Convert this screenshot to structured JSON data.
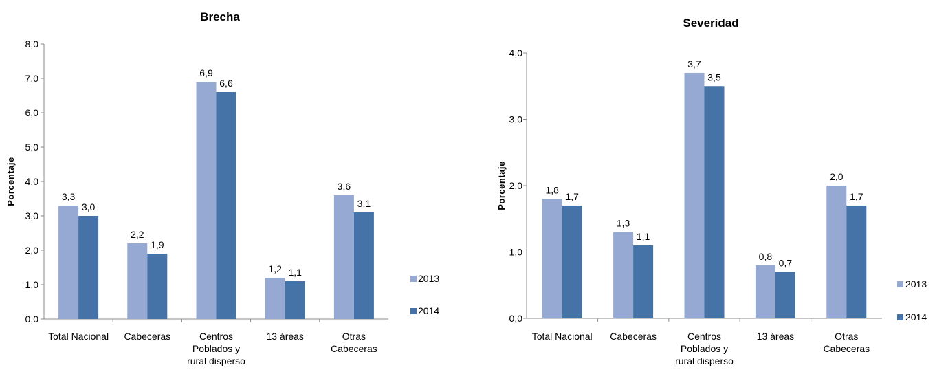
{
  "chart_data": [
    {
      "type": "bar",
      "title": "Brecha",
      "ylabel": "Porcentaje",
      "xlabel": "",
      "ylim": [
        0,
        8
      ],
      "ytick_step": 1,
      "ytick_labels": [
        "0,0",
        "1,0",
        "2,0",
        "3,0",
        "4,0",
        "5,0",
        "6,0",
        "7,0",
        "8,0"
      ],
      "categories": [
        [
          "Total Nacional"
        ],
        [
          "Cabeceras"
        ],
        [
          "Centros",
          "Poblados y",
          "rural disperso"
        ],
        [
          "13 áreas"
        ],
        [
          "Otras",
          "Cabeceras"
        ]
      ],
      "series": [
        {
          "name": "2013",
          "color": "#95A9D3",
          "values": [
            3.3,
            2.2,
            6.9,
            1.2,
            3.6
          ],
          "labels": [
            "3,3",
            "2,2",
            "6,9",
            "1,2",
            "3,6"
          ]
        },
        {
          "name": "2014",
          "color": "#4572A7",
          "values": [
            3.0,
            1.9,
            6.6,
            1.1,
            3.1
          ],
          "labels": [
            "3,0",
            "1,9",
            "6,6",
            "1,1",
            "3,1"
          ]
        }
      ],
      "grid": false,
      "legend": "right"
    },
    {
      "type": "bar",
      "title": "Severidad",
      "ylabel": "Porcentaje",
      "xlabel": "",
      "ylim": [
        0,
        4
      ],
      "ytick_step": 1,
      "ytick_labels": [
        "0,0",
        "1,0",
        "2,0",
        "3,0",
        "4,0"
      ],
      "categories": [
        [
          "Total Nacional"
        ],
        [
          "Cabeceras"
        ],
        [
          "Centros",
          "Poblados y",
          "rural disperso"
        ],
        [
          "13 áreas"
        ],
        [
          "Otras",
          "Cabeceras"
        ]
      ],
      "series": [
        {
          "name": "2013",
          "color": "#95A9D3",
          "values": [
            1.8,
            1.3,
            3.7,
            0.8,
            2.0
          ],
          "labels": [
            "1,8",
            "1,3",
            "3,7",
            "0,8",
            "2,0"
          ]
        },
        {
          "name": "2014",
          "color": "#4572A7",
          "values": [
            1.7,
            1.1,
            3.5,
            0.7,
            1.7
          ],
          "labels": [
            "1,7",
            "1,1",
            "3,5",
            "0,7",
            "1,7"
          ]
        }
      ],
      "grid": false,
      "legend": "right"
    }
  ]
}
